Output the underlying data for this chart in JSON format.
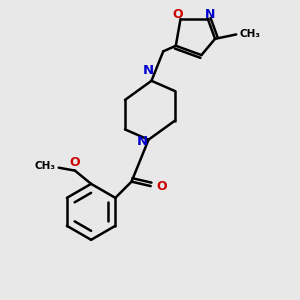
{
  "bg_color": "#e8e8e8",
  "bond_color": "#000000",
  "N_color": "#0000cc",
  "O_color": "#cc0000",
  "line_width": 1.8,
  "figsize": [
    3.0,
    3.0
  ],
  "dpi": 100,
  "xlim": [
    0,
    10
  ],
  "ylim": [
    0,
    10
  ]
}
